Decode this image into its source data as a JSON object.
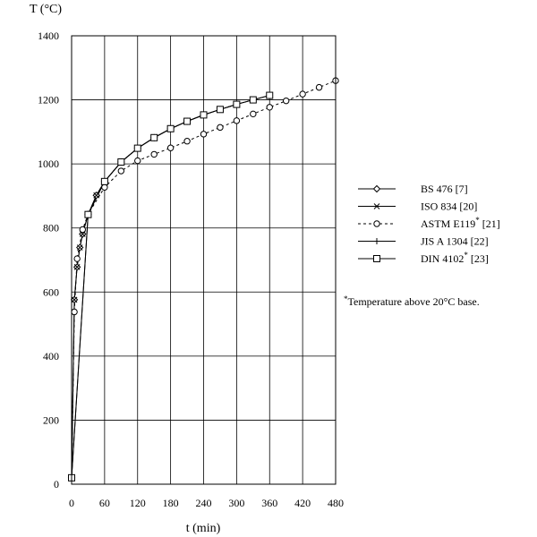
{
  "chart_data": {
    "type": "line",
    "xlabel": "t (min)",
    "ylabel": "T (°C)",
    "xlim": [
      0,
      480
    ],
    "ylim": [
      0,
      1400
    ],
    "xticks": [
      0,
      60,
      120,
      180,
      240,
      300,
      360,
      420,
      480
    ],
    "yticks": [
      0,
      200,
      400,
      600,
      800,
      1000,
      1200,
      1400
    ],
    "grid": true,
    "legend_position": "right",
    "series": [
      {
        "name": "BS 476 [7]",
        "marker": "diamond",
        "dash": "solid",
        "x": [
          0,
          5,
          10,
          15,
          20,
          30,
          45,
          60,
          90,
          120,
          150,
          180,
          210,
          240
        ],
        "y": [
          20,
          576,
          678,
          739,
          781,
          842,
          902,
          945,
          1006,
          1049,
          1082,
          1110,
          1133,
          1153
        ]
      },
      {
        "name": "ISO 834 [20]",
        "marker": "cross",
        "dash": "solid",
        "x": [
          0,
          5,
          10,
          15,
          20,
          30,
          45,
          60,
          90,
          120,
          150,
          180,
          210,
          240,
          270,
          300,
          330,
          360
        ],
        "y": [
          20,
          576,
          678,
          739,
          781,
          842,
          902,
          945,
          1006,
          1049,
          1082,
          1110,
          1133,
          1153,
          1170,
          1186,
          1200,
          1214
        ]
      },
      {
        "name": "ASTM E119",
        "name_sup": "*",
        "name_suffix": " [21]",
        "marker": "circle",
        "dash": "dashed",
        "x": [
          0,
          5,
          10,
          20,
          30,
          60,
          90,
          120,
          150,
          180,
          210,
          240,
          270,
          300,
          330,
          360,
          390,
          420,
          450,
          480
        ],
        "y": [
          20,
          538,
          704,
          795,
          843,
          927,
          978,
          1010,
          1030,
          1050,
          1071,
          1093,
          1114,
          1135,
          1156,
          1177,
          1197,
          1218,
          1239,
          1260
        ]
      },
      {
        "name": "JIS A 1304 [22]",
        "marker": "plus",
        "dash": "solid",
        "x": [
          0,
          30,
          60,
          90,
          120,
          150,
          180,
          210,
          240,
          270,
          300,
          330,
          360
        ],
        "y": [
          20,
          842,
          945,
          1006,
          1049,
          1082,
          1110,
          1133,
          1153,
          1170,
          1186,
          1200,
          1214
        ]
      },
      {
        "name": "DIN 4102",
        "name_sup": "*",
        "name_suffix": " [23]",
        "marker": "square",
        "dash": "solid",
        "x": [
          0,
          30,
          60,
          90,
          120,
          150,
          180,
          210,
          240,
          270,
          300,
          330,
          360
        ],
        "y": [
          20,
          842,
          945,
          1006,
          1049,
          1082,
          1110,
          1133,
          1153,
          1170,
          1186,
          1200,
          1214
        ]
      }
    ],
    "footnote": {
      "sup": "*",
      "text": "Temperature above 20°C base."
    }
  }
}
